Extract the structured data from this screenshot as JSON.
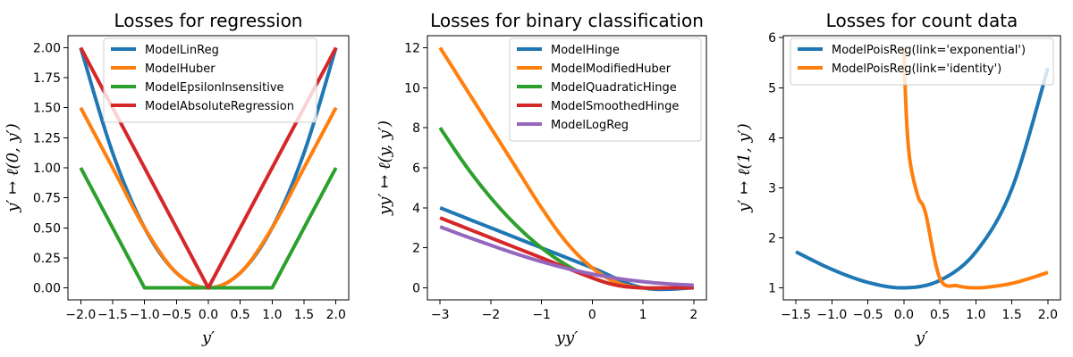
{
  "chart_data": [
    {
      "type": "line",
      "title": "Losses for regression",
      "xlabel": "y′",
      "ylabel": "y′ ↦ ℓ(0, y′)",
      "xlim": [
        -2.2,
        2.2
      ],
      "ylim": [
        -0.1,
        2.1
      ],
      "xticks": [
        -2.0,
        -1.5,
        -1.0,
        -0.5,
        0.0,
        0.5,
        1.0,
        1.5,
        2.0
      ],
      "xtick_labels": [
        "−2.0",
        "−1.5",
        "−1.0",
        "−0.5",
        "0.0",
        "0.5",
        "1.0",
        "1.5",
        "2.0"
      ],
      "yticks": [
        0.0,
        0.25,
        0.5,
        0.75,
        1.0,
        1.25,
        1.5,
        1.75,
        2.0
      ],
      "ytick_labels": [
        "0.00",
        "0.25",
        "0.50",
        "0.75",
        "1.00",
        "1.25",
        "1.50",
        "1.75",
        "2.00"
      ],
      "legend_position": "top-right",
      "series": [
        {
          "name": "ModelLinReg",
          "color": "#1f77b4",
          "x": [
            -2.0,
            -1.5,
            -1.0,
            -0.5,
            0.0,
            0.5,
            1.0,
            1.5,
            2.0
          ],
          "y": [
            2.0,
            1.125,
            0.5,
            0.125,
            0.0,
            0.125,
            0.5,
            1.125,
            2.0
          ]
        },
        {
          "name": "ModelHuber",
          "color": "#ff7f0e",
          "x": [
            -2.0,
            -1.5,
            -1.0,
            -0.5,
            0.0,
            0.5,
            1.0,
            1.5,
            2.0
          ],
          "y": [
            1.5,
            1.0,
            0.5,
            0.125,
            0.0,
            0.125,
            0.5,
            1.0,
            1.5
          ]
        },
        {
          "name": "ModelEpsilonInsensitive",
          "color": "#2ca02c",
          "x": [
            -2.0,
            -1.0,
            0.0,
            1.0,
            2.0
          ],
          "y": [
            1.0,
            0.0,
            0.0,
            0.0,
            1.0
          ]
        },
        {
          "name": "ModelAbsoluteRegression",
          "color": "#d62728",
          "x": [
            -2.0,
            0.0,
            2.0
          ],
          "y": [
            2.0,
            0.0,
            2.0
          ]
        }
      ]
    },
    {
      "type": "line",
      "title": "Losses for binary classification",
      "xlabel": "yy′",
      "ylabel": "yy′ ↦ ℓ(y, y′)",
      "xlim": [
        -3.25,
        2.25
      ],
      "ylim": [
        -0.6,
        12.6
      ],
      "xticks": [
        -3,
        -2,
        -1,
        0,
        1,
        2
      ],
      "xtick_labels": [
        "−3",
        "−2",
        "−1",
        "0",
        "1",
        "2"
      ],
      "yticks": [
        0,
        2,
        4,
        6,
        8,
        10,
        12
      ],
      "ytick_labels": [
        "0",
        "2",
        "4",
        "6",
        "8",
        "10",
        "12"
      ],
      "legend_position": "top-right",
      "series": [
        {
          "name": "ModelHinge",
          "color": "#1f77b4",
          "x": [
            -3,
            -2,
            -1,
            0,
            1,
            2
          ],
          "y": [
            4,
            3,
            2,
            1,
            0,
            0
          ]
        },
        {
          "name": "ModelModifiedHuber",
          "color": "#ff7f0e",
          "x": [
            -3,
            -2.5,
            -2,
            -1.5,
            -1,
            -0.5,
            0,
            0.5,
            1,
            1.5,
            2
          ],
          "y": [
            12,
            10,
            8,
            6,
            4,
            2.25,
            1,
            0.25,
            0,
            0,
            0
          ]
        },
        {
          "name": "ModelQuadraticHinge",
          "color": "#2ca02c",
          "x": [
            -3,
            -2.5,
            -2,
            -1.5,
            -1,
            -0.5,
            0,
            0.5,
            1,
            1.5,
            2
          ],
          "y": [
            8,
            6.125,
            4.5,
            3.125,
            2,
            1.125,
            0.5,
            0.125,
            0,
            0,
            0
          ]
        },
        {
          "name": "ModelSmoothedHinge",
          "color": "#d62728",
          "x": [
            -3,
            -2,
            -1,
            0,
            0.5,
            1,
            1.5,
            2
          ],
          "y": [
            3.5,
            2.5,
            1.5,
            0.5,
            0.125,
            0,
            0,
            0
          ]
        },
        {
          "name": "ModelLogReg",
          "color": "#9467bd",
          "x": [
            -3,
            -2.5,
            -2,
            -1.5,
            -1,
            -0.5,
            0,
            0.5,
            1,
            1.5,
            2
          ],
          "y": [
            3.05,
            2.58,
            2.13,
            1.7,
            1.31,
            0.97,
            0.69,
            0.47,
            0.31,
            0.2,
            0.13
          ]
        }
      ]
    },
    {
      "type": "line",
      "title": "Losses for count data",
      "xlabel": "y′",
      "ylabel": "y′ ↦ ℓ(1, y′)",
      "xlim": [
        -1.675,
        2.175
      ],
      "ylim": [
        0.76,
        6.04
      ],
      "xticks": [
        -1.5,
        -1.0,
        -0.5,
        0.0,
        0.5,
        1.0,
        1.5,
        2.0
      ],
      "xtick_labels": [
        "−1.5",
        "−1.0",
        "−0.5",
        "0.0",
        "0.5",
        "1.0",
        "1.5",
        "2.0"
      ],
      "yticks": [
        1,
        2,
        3,
        4,
        5,
        6
      ],
      "ytick_labels": [
        "1",
        "2",
        "3",
        "4",
        "5",
        "6"
      ],
      "legend_position": "top-left",
      "series": [
        {
          "name": "ModelPoisReg(link='exponential')",
          "color": "#1f77b4",
          "x": [
            -1.5,
            -1.0,
            -0.5,
            0.0,
            0.5,
            1.0,
            1.5,
            2.0
          ],
          "y": [
            1.72,
            1.37,
            1.11,
            1.0,
            1.15,
            1.72,
            2.98,
            5.39
          ]
        },
        {
          "name": "ModelPoisReg(link='identity')",
          "color": "#ff7f0e",
          "x": [
            0.0,
            0.02,
            0.05,
            0.1,
            0.2,
            0.3,
            0.5,
            0.75,
            1.0,
            1.25,
            1.5,
            1.75,
            2.0
          ],
          "y": [
            5.8,
            4.93,
            4.05,
            3.4,
            2.81,
            2.5,
            1.19,
            1.04,
            1.0,
            1.03,
            1.09,
            1.19,
            1.31
          ]
        }
      ]
    }
  ]
}
